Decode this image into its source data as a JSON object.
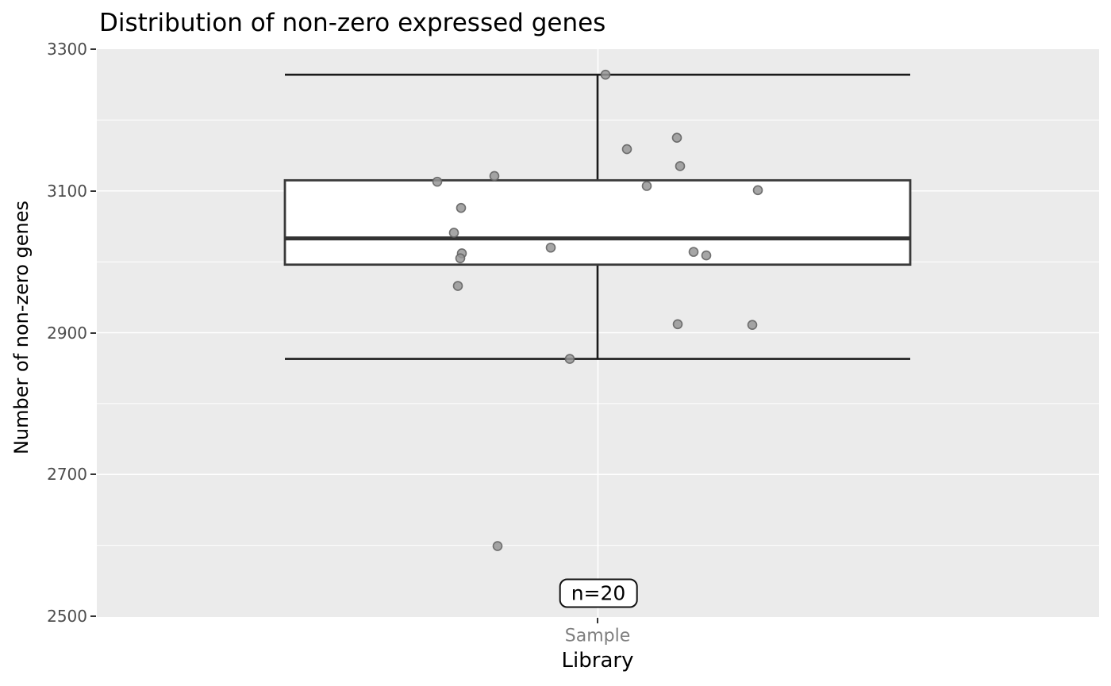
{
  "chart_data": {
    "type": "boxplot",
    "title": "Distribution of non-zero expressed genes",
    "xlabel": "Library",
    "ylabel": "Number of non-zero genes",
    "category": "Sample",
    "annotation": "n=20",
    "n": 20,
    "ylim": [
      2500,
      3300
    ],
    "yticks": [
      3300,
      3100,
      2900,
      2700,
      2500
    ],
    "yminor": [
      3200,
      3000,
      2800,
      2600
    ],
    "legend": "none",
    "grid": "on",
    "box": {
      "min": 2863,
      "q1": 2996,
      "median": 3033,
      "q3": 3115,
      "max": 3264
    },
    "points": [
      {
        "dx": -202,
        "y": 3113
      },
      {
        "dx": -130,
        "y": 3121
      },
      {
        "dx": -172,
        "y": 3076
      },
      {
        "dx": -181,
        "y": 3041
      },
      {
        "dx": -171,
        "y": 3012
      },
      {
        "dx": -173,
        "y": 3005
      },
      {
        "dx": -176,
        "y": 2966
      },
      {
        "dx": -59,
        "y": 3020
      },
      {
        "dx": -35,
        "y": 2863
      },
      {
        "dx": -126,
        "y": 2599
      },
      {
        "dx": 10,
        "y": 3264
      },
      {
        "dx": 37,
        "y": 3159
      },
      {
        "dx": 100,
        "y": 3175
      },
      {
        "dx": 104,
        "y": 3135
      },
      {
        "dx": 62,
        "y": 3107
      },
      {
        "dx": 202,
        "y": 3101
      },
      {
        "dx": 121,
        "y": 3014
      },
      {
        "dx": 137,
        "y": 3009
      },
      {
        "dx": 101,
        "y": 2912
      },
      {
        "dx": 195,
        "y": 2911
      }
    ],
    "colors": {
      "panel_bg": "#EBEBEB",
      "grid": "#FFFFFF",
      "whisker": "#1A1A1A",
      "box_border": "#3A3A3A",
      "box_fill": "#FFFFFF",
      "median": "#333333",
      "point_fill": "#969696",
      "point_stroke": "#646464",
      "y_tick_label": "#4D4D4D",
      "x_tick_label": "#7F7F7F",
      "text": "#000000"
    }
  }
}
